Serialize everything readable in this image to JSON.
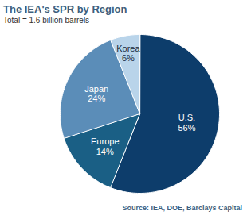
{
  "chart_data": {
    "type": "pie",
    "title": "The IEA's SPR by Region",
    "subtitle": "Total = 1.6 billion barrels",
    "caption": "Source: IEA, DOE, Barclays Capital",
    "categories": [
      "U.S.",
      "Europe",
      "Japan",
      "Korea"
    ],
    "values": [
      56,
      14,
      24,
      6
    ],
    "value_labels": [
      "56%",
      "14%",
      "24%",
      "6%"
    ],
    "colors": [
      "#0d3d6b",
      "#1a5f85",
      "#5b8db8",
      "#b9d4ea"
    ],
    "data_labels": true
  }
}
